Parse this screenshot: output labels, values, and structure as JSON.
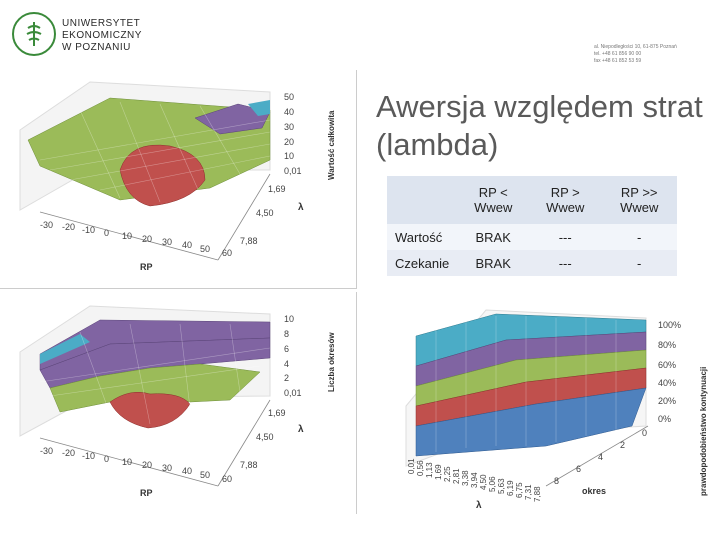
{
  "header": {
    "logo_lines": [
      "UNIWERSYTET",
      "EKONOMICZNY",
      "W POZNANIU"
    ],
    "address_lines": [
      "al. Niepodległości 10, 61-875 Poznań",
      "tel. +48 61 856 90 00",
      "fax +48 61 852 53 59"
    ]
  },
  "slide": {
    "title": "Awersja względem strat (lambda)"
  },
  "table": {
    "headers": [
      "",
      "RP < Wwew",
      "RP > Wwew",
      "RP >> Wwew"
    ],
    "rows": [
      {
        "label": "Wartość",
        "cells": [
          "BRAK",
          "---",
          "-"
        ]
      },
      {
        "label": "Czekanie",
        "cells": [
          "BRAK",
          "---",
          "-"
        ]
      }
    ]
  },
  "charts": {
    "top_left": {
      "z_label": "Wartość całkowita",
      "z_ticks": [
        "50",
        "40",
        "30",
        "20",
        "10",
        "0,01"
      ],
      "lambda_ticks": [
        "1,69",
        "4,50",
        "7,88"
      ],
      "rp_ticks": [
        "-30",
        "-20",
        "-10",
        "0",
        "10",
        "20",
        "30",
        "40",
        "50",
        "60"
      ],
      "x_label": "RP",
      "y_label": "λ"
    },
    "bottom_left": {
      "z_label": "Liczba okresów",
      "z_ticks": [
        "10",
        "8",
        "6",
        "4",
        "2",
        "0,01"
      ],
      "lambda_ticks": [
        "1,69",
        "4,50",
        "7,88"
      ],
      "rp_ticks": [
        "-30",
        "-20",
        "-10",
        "0",
        "10",
        "20",
        "30",
        "40",
        "50",
        "60"
      ],
      "x_label": "RP",
      "y_label": "λ"
    },
    "bottom_right": {
      "z_label": "prawdopodobieństwo kontynuacji",
      "z_ticks": [
        "100%",
        "80%",
        "60%",
        "40%",
        "20%",
        "0%"
      ],
      "lambda_ticks": [
        "0,01",
        "0,56",
        "1,13",
        "1,69",
        "2,25",
        "2,81",
        "3,38",
        "3,94",
        "4,50",
        "5,06",
        "5,63",
        "6,19",
        "6,75",
        "7,31",
        "7,88"
      ],
      "okres_ticks": [
        "0",
        "2",
        "4",
        "6",
        "8"
      ],
      "x_label": "λ",
      "y_label": "okres"
    }
  },
  "colors": {
    "red": "#c0504d",
    "green": "#9bbb59",
    "purple": "#8064a2",
    "teal": "#4bacc6",
    "blue": "#4f81bd",
    "brand_green": "#3a8a3a",
    "title_gray": "#5a5a5a"
  }
}
